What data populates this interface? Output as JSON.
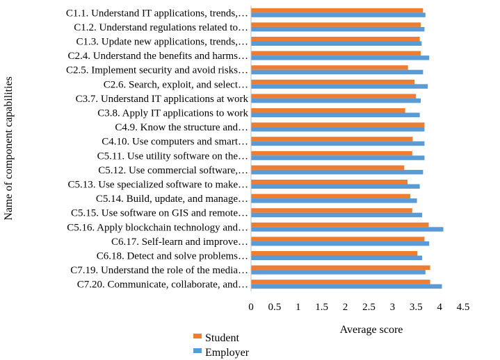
{
  "chart_data": {
    "type": "bar",
    "orientation": "horizontal",
    "categories": [
      "C1.1. Understand IT applications, trends,…",
      "C1.2. Understand regulations related to…",
      "C1.3. Update new applications, trends,…",
      "C2.4. Understand the benefits and harms…",
      "C2.5. Implement security and avoid risks…",
      "C2.6. Search, exploit, and select…",
      "C3.7. Understand IT applications at work",
      "C3.8. Apply IT applications to work",
      "C4.9. Know the structure and…",
      "C4.10. Use computers and smart…",
      "C5.11. Use utility software on the…",
      "C5.12. Use commercial software,…",
      "C5.13. Use specialized software to make…",
      "C5.14. Build, update, and manage…",
      "C5.15. Use software on GIS and remote…",
      "C5.16. Apply blockchain technology and…",
      "C6.17. Self-learn and improve…",
      "C6.18. Detect and solve problems…",
      "C7.19. Understand the role of the media…",
      "C7.20. Communicate, collaborate, and…"
    ],
    "series": [
      {
        "name": "Student",
        "color": "#ED7D31",
        "values": [
          3.65,
          3.6,
          3.58,
          3.6,
          3.33,
          3.47,
          3.5,
          3.27,
          3.68,
          3.43,
          3.42,
          3.25,
          3.32,
          3.38,
          3.42,
          3.77,
          3.68,
          3.53,
          3.8,
          3.8
        ]
      },
      {
        "name": "Employer",
        "color": "#5B9BD5",
        "values": [
          3.7,
          3.68,
          3.62,
          3.78,
          3.65,
          3.75,
          3.6,
          3.58,
          3.68,
          3.68,
          3.68,
          3.65,
          3.58,
          3.52,
          3.63,
          4.08,
          3.78,
          3.63,
          3.7,
          4.05
        ]
      }
    ],
    "xlabel": "Average score",
    "ylabel": "Name of component capabilities",
    "xlim": [
      0,
      4.5
    ],
    "xticks": [
      "0",
      "0.5",
      "1",
      "1.5",
      "2",
      "2.5",
      "3",
      "3.5",
      "4",
      "4.5"
    ],
    "grid": false,
    "legend_position": "bottom-left"
  }
}
